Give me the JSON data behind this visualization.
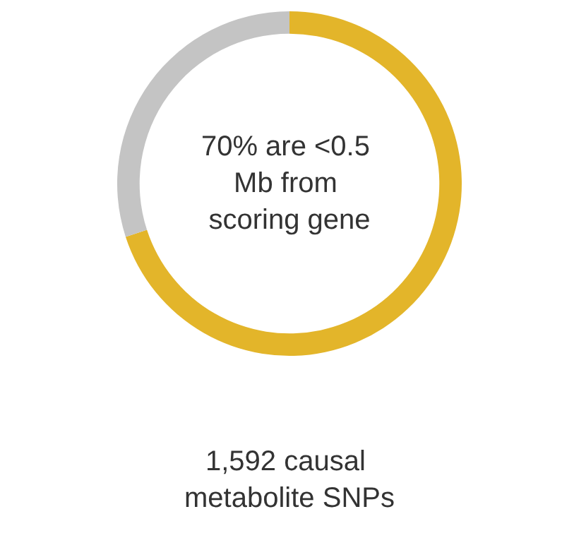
{
  "chart_data": {
    "type": "donut",
    "categories": [
      null,
      null
    ],
    "values": [
      70,
      30
    ],
    "colors": [
      "#e3b52a",
      "#c4c4c4"
    ],
    "annotations": [
      "70% are <0.5 Mb from scoring gene",
      "1,592 causal metabolite SNPs"
    ]
  }
}
